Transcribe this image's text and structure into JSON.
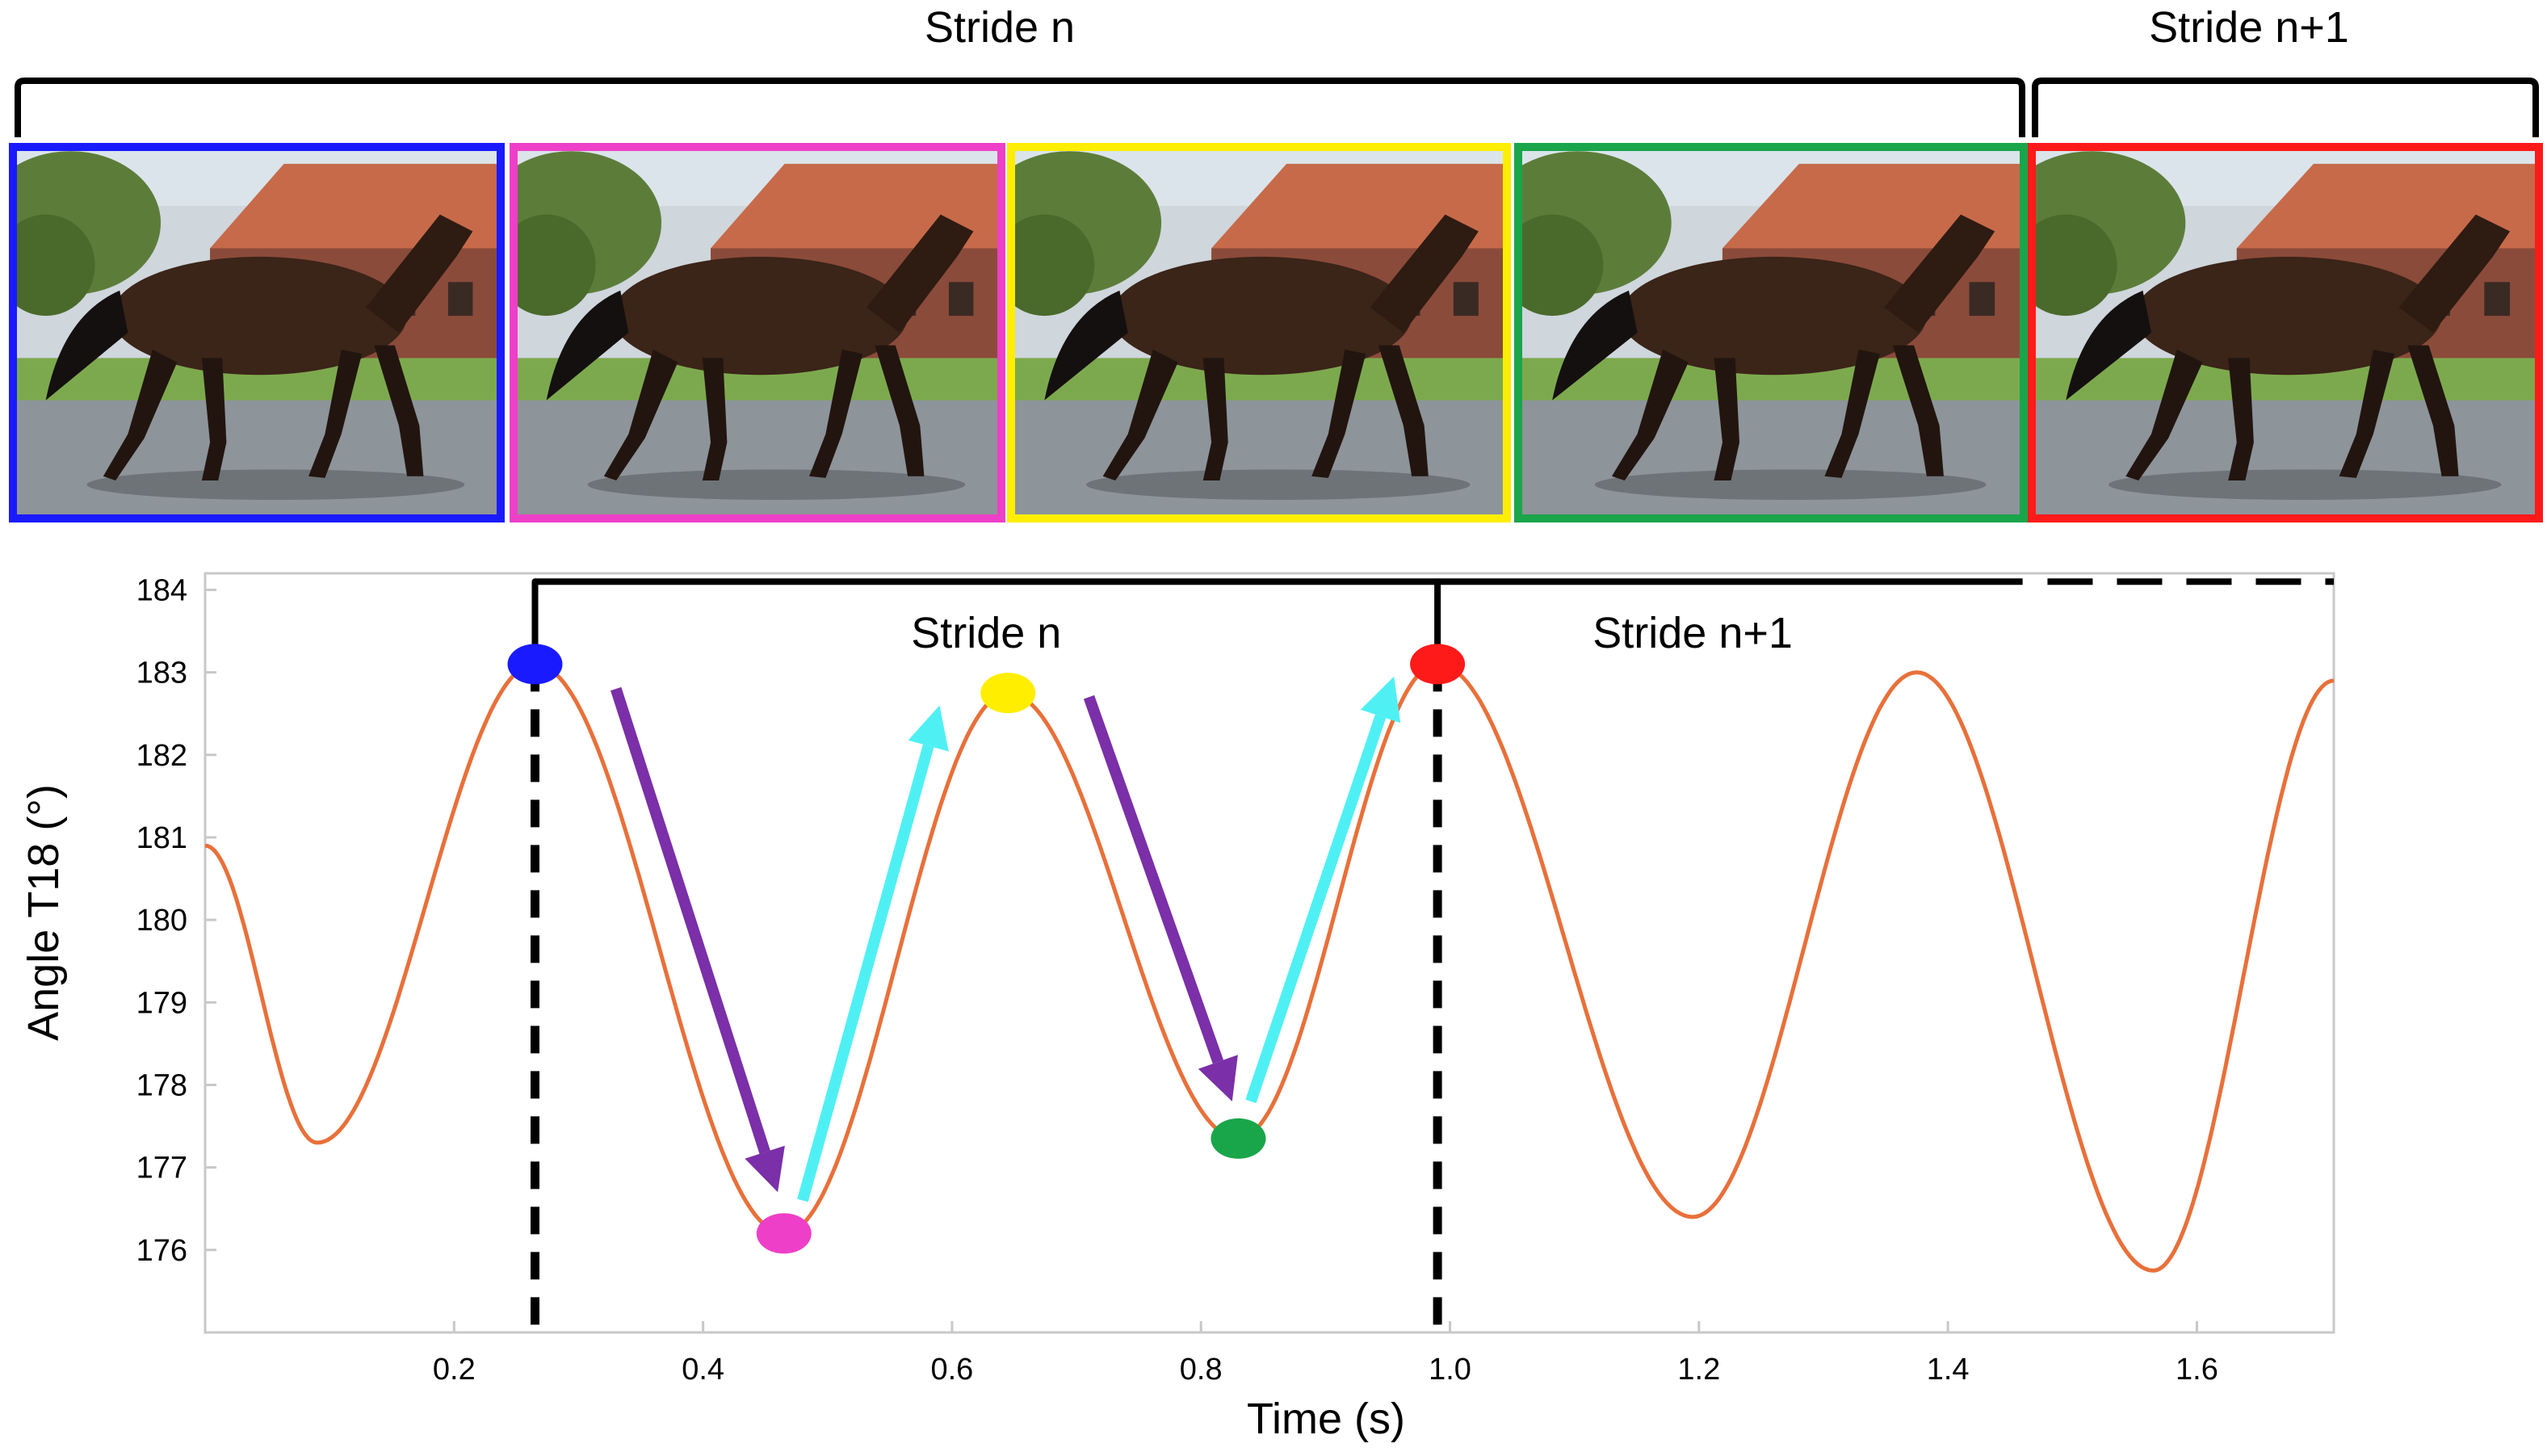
{
  "top_banner": {
    "stride_labels": [
      "Stride n",
      "Stride n+1"
    ]
  },
  "photo_frames": [
    {
      "frame_color": "#1a1aff",
      "phase": "blue"
    },
    {
      "frame_color": "#ee3fc8",
      "phase": "pink"
    },
    {
      "frame_color": "#ffee00",
      "phase": "yellow"
    },
    {
      "frame_color": "#19a54a",
      "phase": "green"
    },
    {
      "frame_color": "#ff1a1a",
      "phase": "red"
    }
  ],
  "chart_data": {
    "type": "line",
    "title": "",
    "xlabel": "Time (s)",
    "ylabel": "Angle T18 (°)",
    "xlim": [
      0,
      1.71
    ],
    "ylim": [
      175,
      184.2
    ],
    "x_ticks": [
      0.2,
      0.4,
      0.6,
      0.8,
      1.0,
      1.2,
      1.4,
      1.6
    ],
    "x_tick_labels": [
      "0.2",
      "0.4",
      "0.6",
      "0.8",
      "1.0",
      "1.2",
      "1.4",
      "1.6"
    ],
    "y_ticks": [
      176,
      177,
      178,
      179,
      180,
      181,
      182,
      183,
      184
    ],
    "y_tick_labels": [
      "176",
      "177",
      "178",
      "179",
      "180",
      "181",
      "182",
      "183",
      "184"
    ],
    "grid": false,
    "series": [
      {
        "color": "#e8703a",
        "extrema": [
          {
            "x": 0.0,
            "y": 180.9
          },
          {
            "x": 0.09,
            "y": 177.3
          },
          {
            "x": 0.265,
            "y": 183.1
          },
          {
            "x": 0.465,
            "y": 176.2
          },
          {
            "x": 0.645,
            "y": 182.75
          },
          {
            "x": 0.83,
            "y": 177.35
          },
          {
            "x": 0.99,
            "y": 183.1
          },
          {
            "x": 1.195,
            "y": 176.4
          },
          {
            "x": 1.375,
            "y": 183.0
          },
          {
            "x": 1.565,
            "y": 175.75
          },
          {
            "x": 1.71,
            "y": 182.9
          }
        ]
      }
    ],
    "event_markers": [
      {
        "x": 0.265,
        "y": 183.1,
        "color": "#1a1aff"
      },
      {
        "x": 0.465,
        "y": 176.2,
        "color": "#ee3fc8"
      },
      {
        "x": 0.645,
        "y": 182.75,
        "color": "#ffee00"
      },
      {
        "x": 0.83,
        "y": 177.35,
        "color": "#19a54a"
      },
      {
        "x": 0.99,
        "y": 183.1,
        "color": "#ff1a1a"
      }
    ],
    "stride_boundaries": [
      0.265,
      0.99
    ],
    "stride_brackets": [
      {
        "label": "Stride n",
        "x_start": 0.265,
        "x_end": 0.99
      },
      {
        "label": "Stride n+1",
        "x_start": 0.99,
        "x_end": 1.71
      }
    ],
    "arrows": [
      {
        "direction": "down",
        "color": "#7b2fa8",
        "from": {
          "x": 0.33,
          "y": 182.8
        },
        "to": {
          "x": 0.46,
          "y": 176.7
        }
      },
      {
        "direction": "up",
        "color": "#4ff0f4",
        "from": {
          "x": 0.48,
          "y": 176.6
        },
        "to": {
          "x": 0.59,
          "y": 182.6
        }
      },
      {
        "direction": "down",
        "color": "#7b2fa8",
        "from": {
          "x": 0.71,
          "y": 182.7
        },
        "to": {
          "x": 0.825,
          "y": 177.8
        }
      },
      {
        "direction": "up",
        "color": "#4ff0f4",
        "from": {
          "x": 0.84,
          "y": 177.8
        },
        "to": {
          "x": 0.955,
          "y": 182.95
        }
      }
    ]
  }
}
